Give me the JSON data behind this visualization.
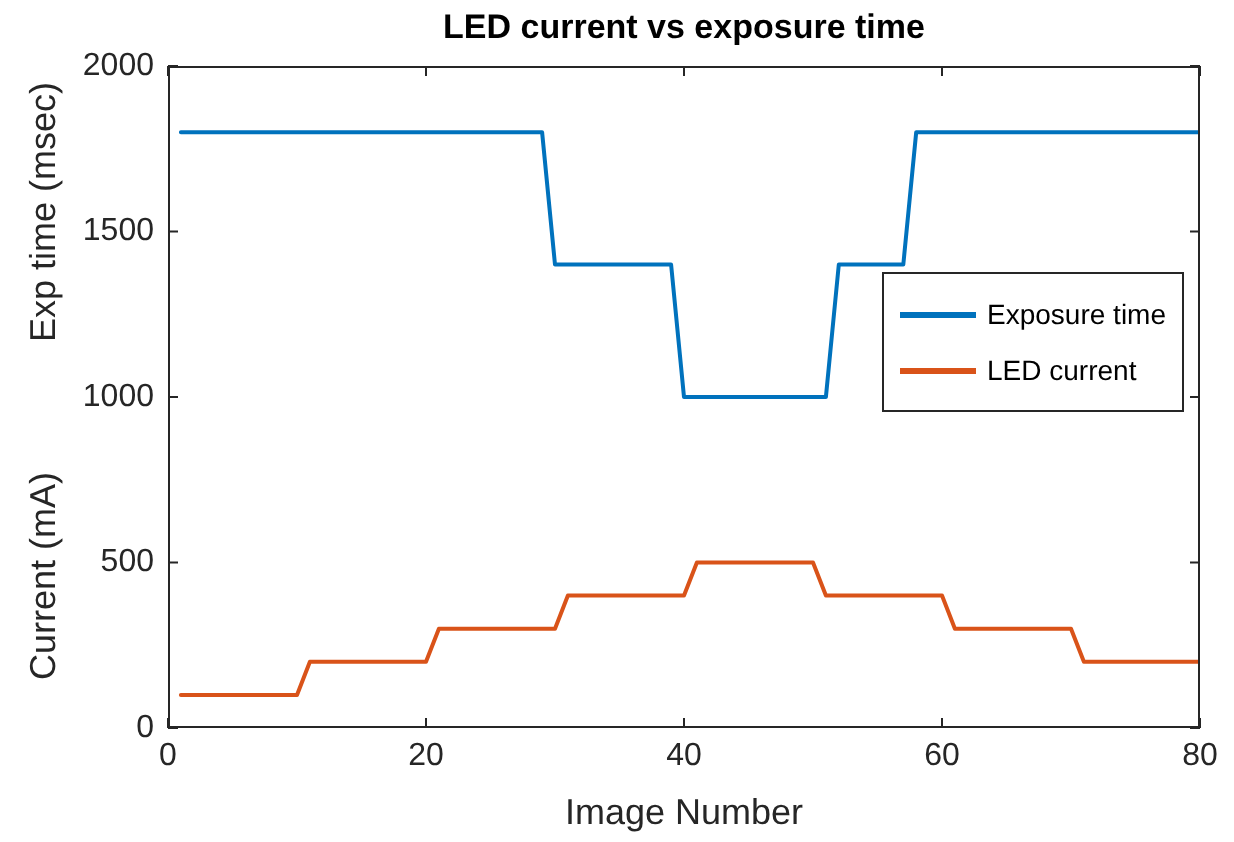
{
  "chart_data": {
    "type": "line",
    "title": "LED current vs exposure time",
    "xlabel": "Image Number",
    "ylabel": "Exp time (msec)",
    "annotations": [
      "Current (mA)"
    ],
    "x": [
      1,
      2,
      3,
      4,
      5,
      6,
      7,
      8,
      9,
      10,
      11,
      12,
      13,
      14,
      15,
      16,
      17,
      18,
      19,
      20,
      21,
      22,
      23,
      24,
      25,
      26,
      27,
      28,
      29,
      30,
      31,
      32,
      33,
      34,
      35,
      36,
      37,
      38,
      39,
      40,
      41,
      42,
      43,
      44,
      45,
      46,
      47,
      48,
      49,
      50,
      51,
      52,
      53,
      54,
      55,
      56,
      57,
      58,
      59,
      60,
      61,
      62,
      63,
      64,
      65,
      66,
      67,
      68,
      69,
      70,
      71,
      72,
      73,
      74,
      75,
      76,
      77,
      78,
      79,
      80
    ],
    "series": [
      {
        "name": "Exposure time",
        "color": "#0072bd",
        "values": [
          1800,
          1800,
          1800,
          1800,
          1800,
          1800,
          1800,
          1800,
          1800,
          1800,
          1800,
          1800,
          1800,
          1800,
          1800,
          1800,
          1800,
          1800,
          1800,
          1800,
          1800,
          1800,
          1800,
          1800,
          1800,
          1800,
          1800,
          1800,
          1800,
          1400,
          1400,
          1400,
          1400,
          1400,
          1400,
          1400,
          1400,
          1400,
          1400,
          1000,
          1000,
          1000,
          1000,
          1000,
          1000,
          1000,
          1000,
          1000,
          1000,
          1000,
          1000,
          1400,
          1400,
          1400,
          1400,
          1400,
          1400,
          1800,
          1800,
          1800,
          1800,
          1800,
          1800,
          1800,
          1800,
          1800,
          1800,
          1800,
          1800,
          1800,
          1800,
          1800,
          1800,
          1800,
          1800,
          1800,
          1800,
          1800,
          1800,
          1800
        ]
      },
      {
        "name": "LED current",
        "color": "#d95319",
        "values": [
          100,
          100,
          100,
          100,
          100,
          100,
          100,
          100,
          100,
          100,
          200,
          200,
          200,
          200,
          200,
          200,
          200,
          200,
          200,
          200,
          300,
          300,
          300,
          300,
          300,
          300,
          300,
          300,
          300,
          300,
          400,
          400,
          400,
          400,
          400,
          400,
          400,
          400,
          400,
          400,
          500,
          500,
          500,
          500,
          500,
          500,
          500,
          500,
          500,
          500,
          400,
          400,
          400,
          400,
          400,
          400,
          400,
          400,
          400,
          400,
          300,
          300,
          300,
          300,
          300,
          300,
          300,
          300,
          300,
          300,
          200,
          200,
          200,
          200,
          200,
          200,
          200,
          200,
          200,
          200
        ]
      }
    ],
    "xlim": [
      0,
      80
    ],
    "xticks": [
      0,
      20,
      40,
      60,
      80
    ],
    "ylim": [
      0,
      2000
    ],
    "yticks": [
      0,
      500,
      1000,
      1500,
      2000
    ],
    "grid": false,
    "legend": "right",
    "marker": "none",
    "line_style": "solid"
  }
}
